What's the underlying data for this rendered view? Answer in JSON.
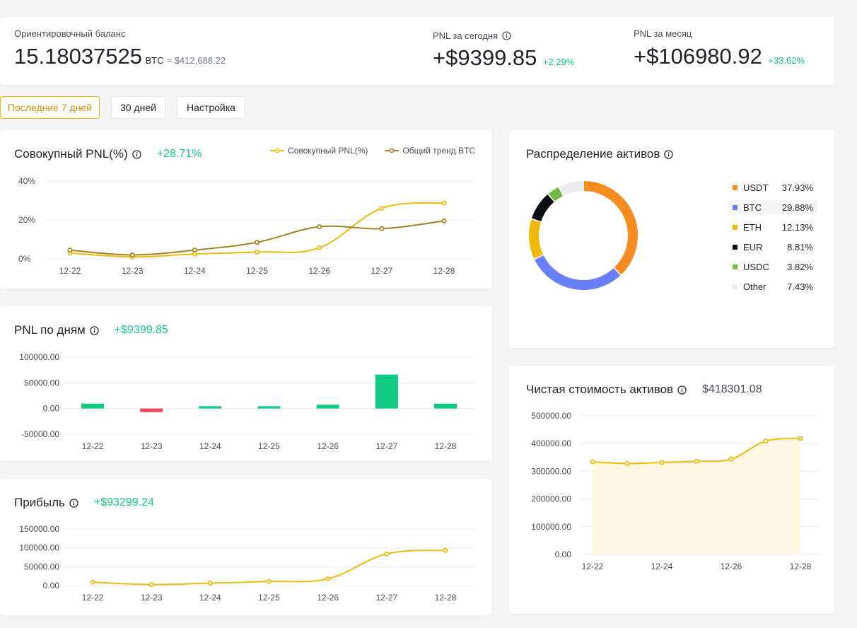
{
  "header": {
    "balance_label": "Ориентировочный баланс",
    "balance_value": "15.18037525",
    "balance_unit": "BTC",
    "balance_usd": "≈ $412,688.22",
    "today_label": "PNL за сегодня",
    "today_value": "+$9399.85",
    "today_pct": "+2.29%",
    "month_label": "PNL за месяц",
    "month_value": "+$106980.92",
    "month_pct": "+33.62%"
  },
  "range_buttons": [
    {
      "label": "Последние 7 дней",
      "active": true
    },
    {
      "label": "30 дней",
      "active": false
    },
    {
      "label": "Настройка",
      "active": false
    }
  ],
  "cumulative": {
    "title": "Совокупный PNL(%)",
    "value": "+28.71%",
    "chart_data": {
      "type": "line",
      "categories": [
        "12-22",
        "12-23",
        "12-24",
        "12-25",
        "12-26",
        "12-27",
        "12-28"
      ],
      "series": [
        {
          "name": "Совокупный PNL(%)",
          "color": "#f0b90b",
          "values": [
            3,
            1,
            2.5,
            3.5,
            5.7,
            26,
            28.7
          ]
        },
        {
          "name": "Общий тренд BTC",
          "color": "#a5801f",
          "values": [
            4.5,
            2,
            4.5,
            8.5,
            16.5,
            15.5,
            19.5
          ]
        }
      ],
      "yticks": [
        "40%",
        "20%",
        "0%"
      ],
      "ylim": [
        0,
        40
      ]
    }
  },
  "daily": {
    "title": "PNL по дням",
    "value": "+$9399.85",
    "chart_data": {
      "type": "bar",
      "categories": [
        "12-22",
        "12-23",
        "12-24",
        "12-25",
        "12-26",
        "12-27",
        "12-28"
      ],
      "values": [
        9500,
        -7000,
        4500,
        4500,
        7500,
        66000,
        9400
      ],
      "yticks": [
        "100000.00",
        "50000.00",
        "0.00",
        "-50000.00"
      ],
      "ylim": [
        -50000,
        100000
      ],
      "colors": {
        "positive": "#0ecb81",
        "negative": "#f6465d"
      }
    }
  },
  "profit": {
    "title": "Прибыль",
    "value": "+$93299.24",
    "chart_data": {
      "type": "line",
      "categories": [
        "12-22",
        "12-23",
        "12-24",
        "12-25",
        "12-26",
        "12-27",
        "12-28"
      ],
      "series": [
        {
          "color": "#f0b90b",
          "values": [
            9000,
            2500,
            6500,
            11000,
            18000,
            84000,
            93299.24
          ]
        }
      ],
      "yticks": [
        "150000.00",
        "100000.00",
        "50000.00",
        "0.00"
      ],
      "ylim": [
        0,
        150000
      ]
    }
  },
  "distribution": {
    "title": "Распределение активов",
    "chart_data": {
      "type": "pie",
      "slices": [
        {
          "name": "USDT",
          "pct": "37.93%",
          "value": 37.93,
          "color": "#f68b1f"
        },
        {
          "name": "BTC",
          "pct": "29.88%",
          "value": 29.88,
          "color": "#6a7ff7"
        },
        {
          "name": "ETH",
          "pct": "12.13%",
          "value": 12.13,
          "color": "#f0b90b"
        },
        {
          "name": "EUR",
          "pct": "8.81%",
          "value": 8.81,
          "color": "#0b0e11"
        },
        {
          "name": "USDC",
          "pct": "3.82%",
          "value": 3.82,
          "color": "#76b947"
        },
        {
          "name": "Other",
          "pct": "7.43%",
          "value": 7.43,
          "color": "#eaecef"
        }
      ]
    }
  },
  "net_assets": {
    "title": "Чистая стоимость активов",
    "value": "$418301.08",
    "chart_data": {
      "type": "area",
      "categories": [
        "12-22",
        "12-23",
        "12-24",
        "12-25",
        "12-26",
        "12-27",
        "12-28"
      ],
      "xtick_labels": [
        "12-22",
        "12-24",
        "12-26",
        "12-28"
      ],
      "values": [
        334000,
        328000,
        332000,
        336000,
        344000,
        409000,
        418301.08
      ],
      "yticks": [
        "500000.00",
        "400000.00",
        "300000.00",
        "200000.00",
        "100000.00",
        "0.00"
      ],
      "ylim": [
        0,
        500000
      ],
      "color": "#f0b90b",
      "fill": "#fdf6e0"
    }
  }
}
